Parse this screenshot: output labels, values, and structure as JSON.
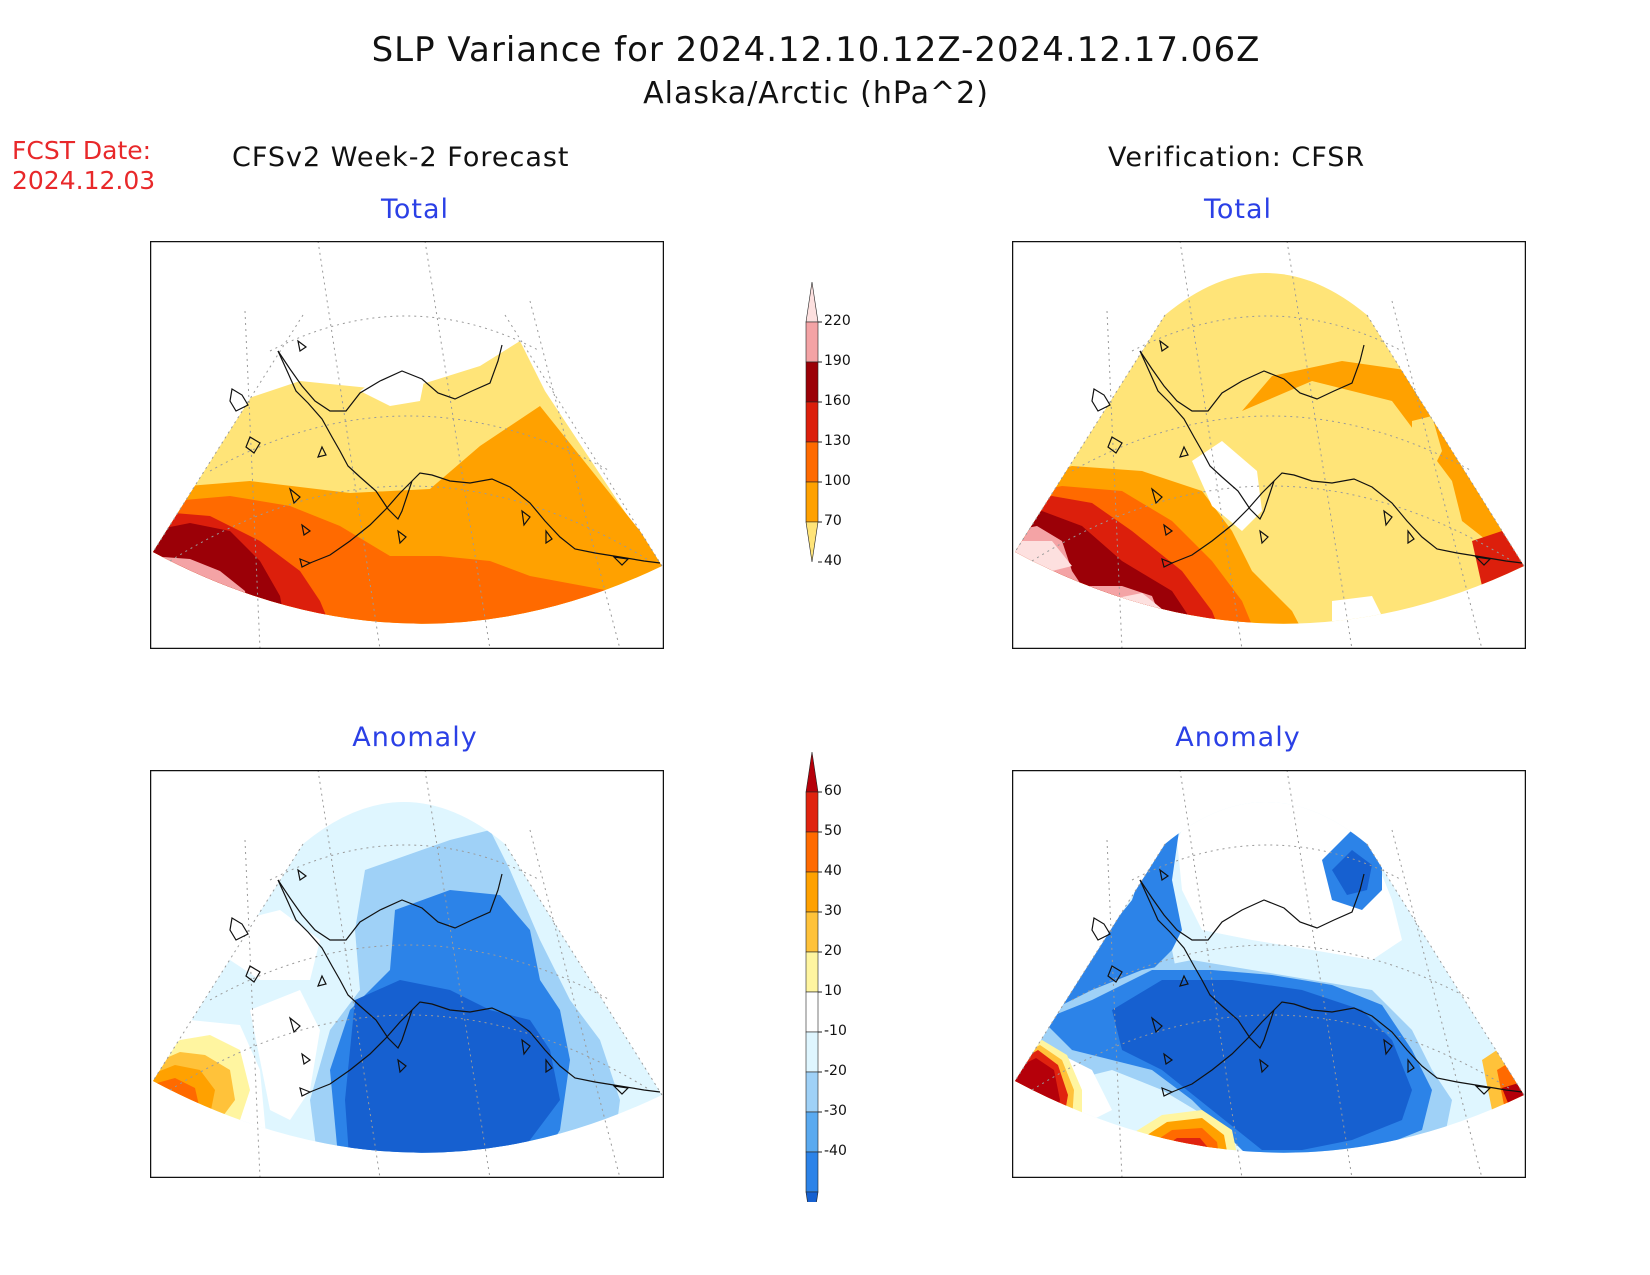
{
  "header": {
    "title": "SLP Variance for 2024.12.10.12Z-2024.12.17.06Z",
    "subtitle": "Alaska/Arctic (hPa^2)",
    "fcst_label": "FCST Date:",
    "fcst_date": "2024.12.03",
    "left_column": "CFSv2 Week-2 Forecast",
    "right_column": "Verification: CFSR"
  },
  "panels": {
    "forecast_total": "Total",
    "verification_total": "Total",
    "forecast_anomaly": "Anomaly",
    "verification_anomaly": "Anomaly"
  },
  "colorbars": {
    "total": {
      "ticks": [
        "220",
        "190",
        "160",
        "130",
        "100",
        "70",
        "40"
      ],
      "colors": [
        "#fde0df",
        "#f4a3a5",
        "#9b0007",
        "#dc1f0c",
        "#ff6a00",
        "#ffa100",
        "#ffe478"
      ]
    },
    "anomaly": {
      "ticks": [
        "60",
        "50",
        "40",
        "30",
        "20",
        "10",
        "-10",
        "-20",
        "-30",
        "-40"
      ],
      "colors": [
        "#b5000a",
        "#e0230f",
        "#ff6a00",
        "#ffa100",
        "#ffc23a",
        "#fff5a0",
        "#ffffff",
        "#dff6ff",
        "#9fd1f7",
        "#5aaaf0",
        "#2c83e8",
        "#1660d0"
      ]
    }
  },
  "palette": {
    "white": "#ffffff",
    "total_40_70": "#ffe478",
    "total_70_100": "#ffa100",
    "total_100_130": "#ff6a00",
    "total_130_160": "#dc1f0c",
    "total_160_190": "#9b0007",
    "total_190_220": "#f4a3a5",
    "total_gt220": "#fde0df",
    "anom_lt_m40": "#1660d0",
    "anom_m40_m30": "#2c83e8",
    "anom_m30_m20": "#9fd1f7",
    "anom_m20_m10": "#dff6ff",
    "anom_10_20": "#fff5a0",
    "anom_20_30": "#ffc23a",
    "anom_30_40": "#ffa100",
    "anom_40_50": "#ff6a00",
    "anom_50_60": "#e0230f",
    "anom_gt60": "#b5000a"
  }
}
